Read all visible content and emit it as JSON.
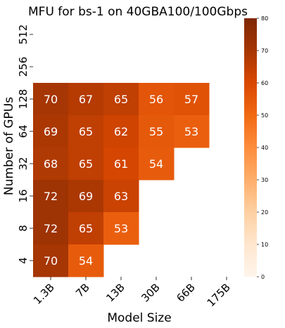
{
  "chart_data": {
    "type": "heatmap",
    "title": "MFU  for bs-1 on 40GBA100/100Gbps",
    "xlabel": "Model Size",
    "ylabel": "Number of GPUs",
    "x_categories": [
      "1.3B",
      "7B",
      "13B",
      "30B",
      "66B",
      "175B"
    ],
    "y_categories": [
      "512",
      "256",
      "128",
      "64",
      "32",
      "16",
      "8",
      "4"
    ],
    "values": [
      [
        null,
        null,
        null,
        null,
        null,
        null
      ],
      [
        null,
        null,
        null,
        null,
        null,
        null
      ],
      [
        70,
        67,
        65,
        56,
        57,
        null
      ],
      [
        69,
        65,
        62,
        55,
        53,
        null
      ],
      [
        68,
        65,
        61,
        54,
        null,
        null
      ],
      [
        72,
        69,
        63,
        null,
        null,
        null
      ],
      [
        72,
        65,
        53,
        null,
        null,
        null
      ],
      [
        70,
        54,
        null,
        null,
        null,
        null
      ]
    ],
    "colorbar": {
      "min": 0,
      "max": 80,
      "ticks": [
        0,
        10,
        20,
        30,
        40,
        50,
        60,
        70,
        80
      ]
    },
    "colorscale": [
      "#fff5eb",
      "#fee6ce",
      "#fdd0a2",
      "#fdae6b",
      "#fd8d3c",
      "#f16913",
      "#d94801",
      "#a63603",
      "#7f2704"
    ]
  }
}
